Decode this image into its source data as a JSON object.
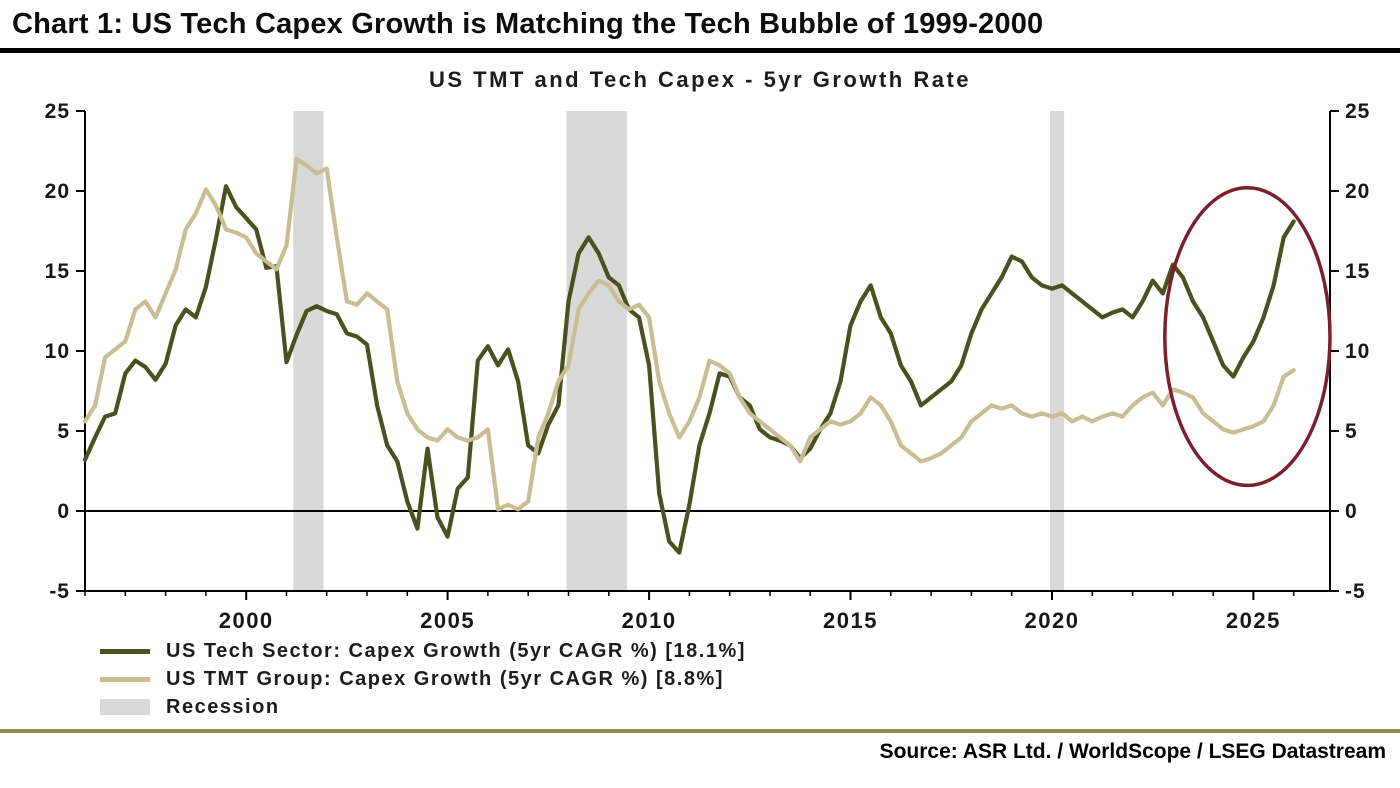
{
  "header": {
    "title": "Chart 1: US Tech Capex Growth is Matching the Tech Bubble of 1999-2000"
  },
  "footer": {
    "source": "Source: ASR Ltd. / WorldScope / LSEG Datastream"
  },
  "chart_data": {
    "type": "line",
    "title": "US TMT and Tech Capex - 5yr Growth Rate",
    "x_range": [
      1996.0,
      2026.9
    ],
    "y_range": [
      -5,
      25
    ],
    "x_ticks": [
      2000,
      2005,
      2010,
      2015,
      2020,
      2025
    ],
    "y_ticks": [
      -5,
      0,
      5,
      10,
      15,
      20,
      25
    ],
    "x_minor_tick_step": 1,
    "x_start": 1996.0,
    "x_step": 0.25,
    "grid": false,
    "zero_line": true,
    "legend_position": "bottom-left",
    "series": [
      {
        "name": "US Tech Sector: Capex Growth (5yr CAGR %) [18.1%]",
        "color": "#4a511e",
        "line_width": 4.2,
        "values": [
          3.2,
          4.6,
          5.9,
          6.1,
          8.6,
          9.4,
          9.0,
          8.2,
          9.2,
          11.6,
          12.6,
          12.1,
          14.0,
          17.0,
          20.3,
          19.0,
          18.3,
          17.6,
          15.2,
          15.3,
          9.3,
          11.0,
          12.5,
          12.8,
          12.5,
          12.3,
          11.1,
          10.9,
          10.4,
          6.6,
          4.1,
          3.1,
          0.6,
          -1.1,
          3.9,
          -0.4,
          -1.6,
          1.4,
          2.1,
          9.4,
          10.3,
          9.1,
          10.1,
          8.1,
          4.1,
          3.6,
          5.4,
          6.6,
          13.1,
          16.1,
          17.1,
          16.1,
          14.6,
          14.1,
          12.6,
          12.1,
          9.1,
          1.1,
          -1.9,
          -2.6,
          0.4,
          4.1,
          6.1,
          8.6,
          8.4,
          7.1,
          6.6,
          5.1,
          4.6,
          4.4,
          4.1,
          3.3,
          3.9,
          5.1,
          6.1,
          8.1,
          11.6,
          13.1,
          14.1,
          12.1,
          11.1,
          9.1,
          8.1,
          6.6,
          7.1,
          7.6,
          8.1,
          9.1,
          11.1,
          12.6,
          13.6,
          14.6,
          15.9,
          15.6,
          14.6,
          14.1,
          13.9,
          14.1,
          13.6,
          13.1,
          12.6,
          12.1,
          12.4,
          12.6,
          12.1,
          13.1,
          14.4,
          13.6,
          15.4,
          14.6,
          13.1,
          12.1,
          10.6,
          9.1,
          8.4,
          9.6,
          10.6,
          12.1,
          14.1,
          17.1,
          18.1
        ]
      },
      {
        "name": "US TMT Group: Capex Growth (5yr CAGR %) [8.8%]",
        "color": "#c9bd94",
        "line_width": 4.2,
        "values": [
          5.6,
          6.6,
          9.6,
          10.1,
          10.6,
          12.6,
          13.1,
          12.1,
          13.6,
          15.1,
          17.6,
          18.6,
          20.1,
          19.1,
          17.6,
          17.4,
          17.1,
          16.1,
          15.6,
          15.1,
          16.6,
          22.0,
          21.6,
          21.1,
          21.4,
          17.1,
          13.1,
          12.9,
          13.6,
          13.1,
          12.6,
          8.1,
          6.1,
          5.1,
          4.6,
          4.4,
          5.1,
          4.6,
          4.4,
          4.6,
          5.1,
          0.1,
          0.4,
          0.1,
          0.6,
          4.6,
          6.1,
          8.1,
          9.1,
          12.6,
          13.6,
          14.4,
          14.1,
          13.1,
          12.6,
          12.9,
          12.1,
          8.1,
          6.1,
          4.6,
          5.6,
          7.1,
          9.4,
          9.1,
          8.6,
          7.1,
          6.1,
          5.6,
          5.1,
          4.6,
          4.1,
          3.1,
          4.6,
          5.1,
          5.6,
          5.4,
          5.6,
          6.1,
          7.1,
          6.6,
          5.6,
          4.1,
          3.6,
          3.1,
          3.3,
          3.6,
          4.1,
          4.6,
          5.6,
          6.1,
          6.6,
          6.4,
          6.6,
          6.1,
          5.9,
          6.1,
          5.9,
          6.1,
          5.6,
          5.9,
          5.6,
          5.9,
          6.1,
          5.9,
          6.6,
          7.1,
          7.4,
          6.6,
          7.6,
          7.4,
          7.1,
          6.1,
          5.6,
          5.1,
          4.9,
          5.1,
          5.3,
          5.6,
          6.6,
          8.4,
          8.8
        ]
      }
    ],
    "recessions": {
      "label": "Recession",
      "color": "#d9d9d9",
      "bands": [
        [
          2001.17,
          2001.92
        ],
        [
          2007.95,
          2009.45
        ],
        [
          2019.95,
          2020.3
        ]
      ]
    },
    "annotation_ellipse": {
      "cx": 2024.85,
      "cy": 10.9,
      "rx": 2.05,
      "ry": 9.3,
      "color": "#7c1f2d",
      "stroke_width": 3.5
    }
  }
}
